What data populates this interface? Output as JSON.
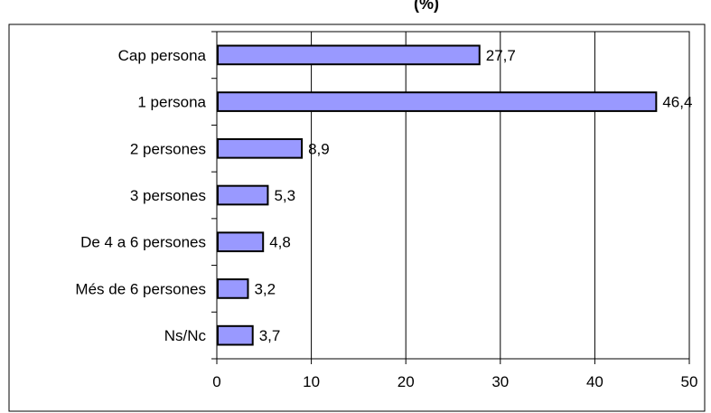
{
  "chart_data": {
    "type": "bar",
    "orientation": "horizontal",
    "title": "(%)",
    "categories": [
      "Cap persona",
      "1 persona",
      "2 persones",
      "3 persones",
      "De 4 a 6 persones",
      "Més de 6 persones",
      "Ns/Nc"
    ],
    "values": [
      27.7,
      46.4,
      8.9,
      5.3,
      4.8,
      3.2,
      3.7
    ],
    "value_labels": [
      "27,7",
      "46,4",
      "8,9",
      "5,3",
      "4,8",
      "3,2",
      "3,7"
    ],
    "xlim": [
      0,
      50
    ],
    "xticks": [
      0,
      10,
      20,
      30,
      40,
      50
    ],
    "xlabel": "",
    "ylabel": "",
    "grid": "vertical",
    "legend": "none",
    "colors": {
      "bar_fill": "#9999ff",
      "bar_stroke": "#000000",
      "grid": "#000000",
      "frame": "#000000"
    }
  }
}
